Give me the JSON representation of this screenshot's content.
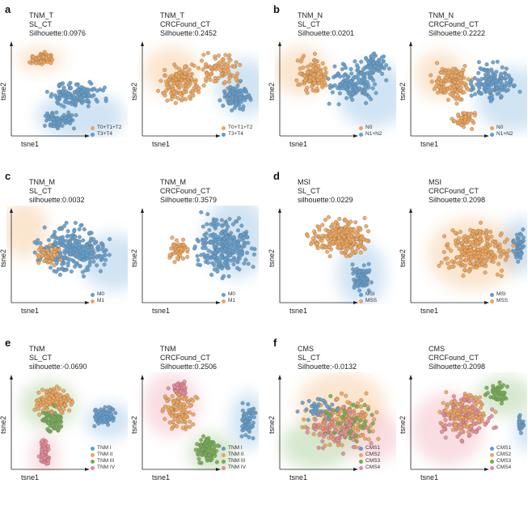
{
  "colors": {
    "orange": "#f0a456",
    "blue": "#5b9fd6",
    "green": "#6fae55",
    "pink": "#e8889a",
    "grey_orange": "#b9a99a"
  },
  "axis": {
    "x": "tsne1",
    "y": "tsne2"
  },
  "groups": [
    {
      "label": "a",
      "panels": [
        {
          "title": "TNM_T",
          "model": "SL_CT",
          "metric": "Silhouette:0.0976",
          "legend": [
            {
              "label": "T0+T1+T2",
              "color": "#f0a456"
            },
            {
              "label": "T3+T4",
              "color": "#5b9fd6"
            }
          ]
        },
        {
          "title": "TNM_T",
          "model": "CRCFound_CT",
          "metric": "Silhouette:0.2452",
          "legend": [
            {
              "label": "T0+T1+T2",
              "color": "#f0a456"
            },
            {
              "label": "T3+T4",
              "color": "#5b9fd6"
            }
          ]
        }
      ]
    },
    {
      "label": "b",
      "panels": [
        {
          "title": "TNM_N",
          "model": "SL_CT",
          "metric": "Silhouette:0.0201",
          "legend": [
            {
              "label": "N0",
              "color": "#f0a456"
            },
            {
              "label": "N1+N2",
              "color": "#5b9fd6"
            }
          ]
        },
        {
          "title": "TNM_N",
          "model": "CRCFound_CT",
          "metric": "Silhouette:0.2222",
          "legend": [
            {
              "label": "N0",
              "color": "#f0a456"
            },
            {
              "label": "N1+N2",
              "color": "#5b9fd6"
            }
          ]
        }
      ]
    },
    {
      "label": "c",
      "panels": [
        {
          "title": "TNM_M",
          "model": "SL_CT",
          "metric": "silhouette:0.0032",
          "legend": [
            {
              "label": "M0",
              "color": "#5b9fd6"
            },
            {
              "label": "M1",
              "color": "#f0a456"
            }
          ]
        },
        {
          "title": "TNM_M",
          "model": "CRCFound_CT",
          "metric": "Silhouette:0.3579",
          "legend": [
            {
              "label": "M0",
              "color": "#5b9fd6"
            },
            {
              "label": "M1",
              "color": "#f0a456"
            }
          ]
        }
      ]
    },
    {
      "label": "d",
      "panels": [
        {
          "title": "MSI",
          "model": "SL_CT",
          "metric": "silhouette:0.0229",
          "legend": [
            {
              "label": "MSI",
              "color": "#5b9fd6"
            },
            {
              "label": "MSS",
              "color": "#f0a456"
            }
          ]
        },
        {
          "title": "MSI",
          "model": "CRCFound_CT",
          "metric": "Silhouette:0.2098",
          "legend": [
            {
              "label": "MSI",
              "color": "#5b9fd6"
            },
            {
              "label": "MSS",
              "color": "#f0a456"
            }
          ]
        }
      ]
    },
    {
      "label": "e",
      "panels": [
        {
          "title": "TNM",
          "model": "SL_CT",
          "metric": "silhouette:-0.0690",
          "legend": [
            {
              "label": "TNM I",
              "color": "#5b9fd6"
            },
            {
              "label": "TNM II",
              "color": "#f0a456"
            },
            {
              "label": "TNM III",
              "color": "#6fae55"
            },
            {
              "label": "TNM IV",
              "color": "#e8889a"
            }
          ]
        },
        {
          "title": "TNM",
          "model": "CRCFound_CT",
          "metric": "Silhouette:0.2506",
          "legend": [
            {
              "label": "TNM I",
              "color": "#5b9fd6"
            },
            {
              "label": "TNM II",
              "color": "#f0a456"
            },
            {
              "label": "TNM III",
              "color": "#6fae55"
            },
            {
              "label": "TNM IV",
              "color": "#e8889a"
            }
          ]
        }
      ]
    },
    {
      "label": "f",
      "panels": [
        {
          "title": "CMS",
          "model": "SL_CT",
          "metric": "Silhouette:-0.0132",
          "legend": [
            {
              "label": "CMS1",
              "color": "#5b9fd6"
            },
            {
              "label": "CMS2",
              "color": "#f0a456"
            },
            {
              "label": "CMS3",
              "color": "#6fae55"
            },
            {
              "label": "CMS4",
              "color": "#e8889a"
            }
          ]
        },
        {
          "title": "CMS",
          "model": "CRCFound_CT",
          "metric": "Silhouette:0.2098",
          "legend": [
            {
              "label": "CMS1",
              "color": "#5b9fd6"
            },
            {
              "label": "CMS2",
              "color": "#f0a456"
            },
            {
              "label": "CMS3",
              "color": "#6fae55"
            },
            {
              "label": "CMS4",
              "color": "#e8889a"
            }
          ]
        }
      ]
    }
  ],
  "chart_data": [
    {
      "type": "scatter",
      "panel": "a1",
      "title": "TNM_T SL_CT",
      "metric": "Silhouette:0.0976",
      "series": [
        {
          "name": "T0+T1+T2"
        },
        {
          "name": "T3+T4"
        }
      ],
      "xlabel": "tsne1",
      "ylabel": "tsne2"
    },
    {
      "type": "scatter",
      "panel": "a2",
      "title": "TNM_T CRCFound_CT",
      "metric": "Silhouette:0.2452",
      "series": [
        {
          "name": "T0+T1+T2"
        },
        {
          "name": "T3+T4"
        }
      ],
      "xlabel": "tsne1",
      "ylabel": "tsne2"
    },
    {
      "type": "scatter",
      "panel": "b1",
      "title": "TNM_N SL_CT",
      "metric": "Silhouette:0.0201",
      "series": [
        {
          "name": "N0"
        },
        {
          "name": "N1+N2"
        }
      ],
      "xlabel": "tsne1",
      "ylabel": "tsne2"
    },
    {
      "type": "scatter",
      "panel": "b2",
      "title": "TNM_N CRCFound_CT",
      "metric": "Silhouette:0.2222",
      "series": [
        {
          "name": "N0"
        },
        {
          "name": "N1+N2"
        }
      ],
      "xlabel": "tsne1",
      "ylabel": "tsne2"
    },
    {
      "type": "scatter",
      "panel": "c1",
      "title": "TNM_M SL_CT",
      "metric": "silhouette:0.0032",
      "series": [
        {
          "name": "M0"
        },
        {
          "name": "M1"
        }
      ],
      "xlabel": "tsne1",
      "ylabel": "tsne2"
    },
    {
      "type": "scatter",
      "panel": "c2",
      "title": "TNM_M CRCFound_CT",
      "metric": "Silhouette:0.3579",
      "series": [
        {
          "name": "M0"
        },
        {
          "name": "M1"
        }
      ],
      "xlabel": "tsne1",
      "ylabel": "tsne2"
    },
    {
      "type": "scatter",
      "panel": "d1",
      "title": "MSI SL_CT",
      "metric": "silhouette:0.0229",
      "series": [
        {
          "name": "MSI"
        },
        {
          "name": "MSS"
        }
      ],
      "xlabel": "tsne1",
      "ylabel": "tsne2"
    },
    {
      "type": "scatter",
      "panel": "d2",
      "title": "MSI CRCFound_CT",
      "metric": "Silhouette:0.2098",
      "series": [
        {
          "name": "MSI"
        },
        {
          "name": "MSS"
        }
      ],
      "xlabel": "tsne1",
      "ylabel": "tsne2"
    },
    {
      "type": "scatter",
      "panel": "e1",
      "title": "TNM SL_CT",
      "metric": "silhouette:-0.0690",
      "series": [
        {
          "name": "TNM I"
        },
        {
          "name": "TNM II"
        },
        {
          "name": "TNM III"
        },
        {
          "name": "TNM IV"
        }
      ],
      "xlabel": "tsne1",
      "ylabel": "tsne2"
    },
    {
      "type": "scatter",
      "panel": "e2",
      "title": "TNM CRCFound_CT",
      "metric": "Silhouette:0.2506",
      "series": [
        {
          "name": "TNM I"
        },
        {
          "name": "TNM II"
        },
        {
          "name": "TNM III"
        },
        {
          "name": "TNM IV"
        }
      ],
      "xlabel": "tsne1",
      "ylabel": "tsne2"
    },
    {
      "type": "scatter",
      "panel": "f1",
      "title": "CMS SL_CT",
      "metric": "Silhouette:-0.0132",
      "series": [
        {
          "name": "CMS1"
        },
        {
          "name": "CMS2"
        },
        {
          "name": "CMS3"
        },
        {
          "name": "CMS4"
        }
      ],
      "xlabel": "tsne1",
      "ylabel": "tsne2"
    },
    {
      "type": "scatter",
      "panel": "f2",
      "title": "CMS CRCFound_CT",
      "metric": "Silhouette:0.2098",
      "series": [
        {
          "name": "CMS1"
        },
        {
          "name": "CMS2"
        },
        {
          "name": "CMS3"
        },
        {
          "name": "CMS4"
        }
      ],
      "xlabel": "tsne1",
      "ylabel": "tsne2"
    }
  ]
}
